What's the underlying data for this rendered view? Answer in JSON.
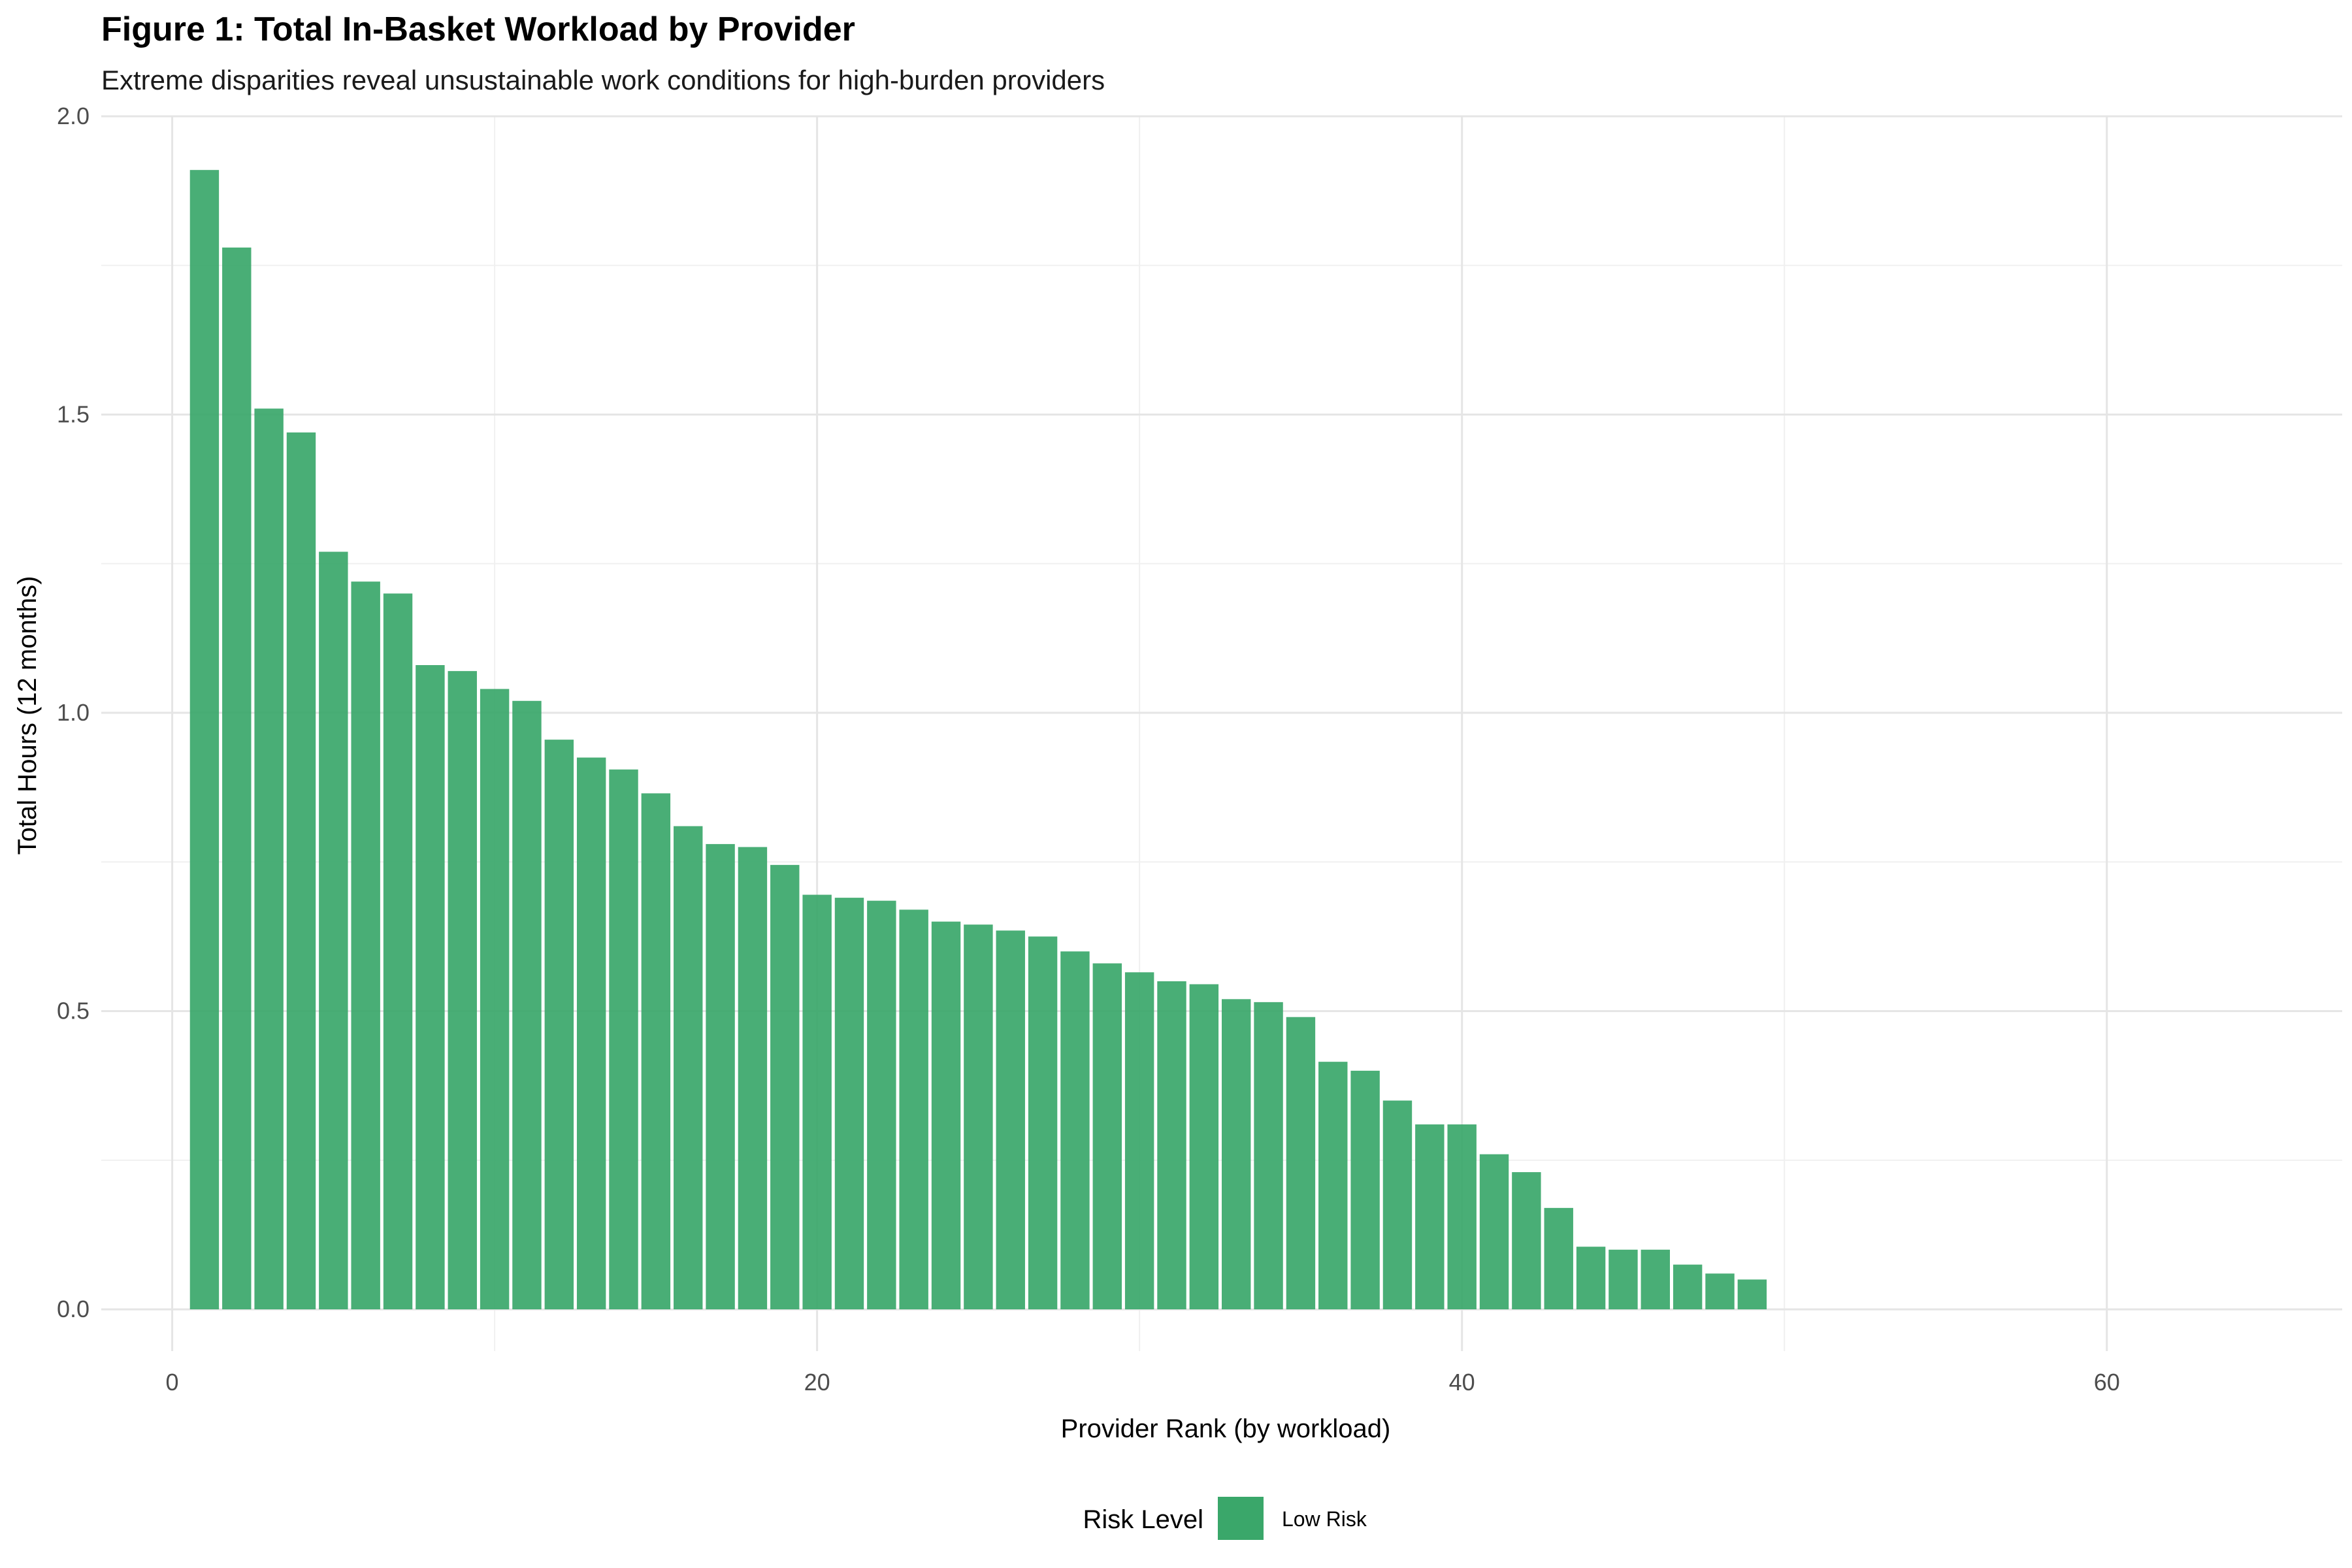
{
  "chart_data": {
    "type": "bar",
    "title": "Figure 1: Total In-Basket Workload by Provider",
    "subtitle": "Extreme disparities reveal unsustainable work conditions for high-burden providers",
    "xlabel": "Provider Rank (by workload)",
    "ylabel": "Total Hours (12 months)",
    "xlim": [
      -2.2,
      67.3
    ],
    "ylim": [
      -0.07,
      2.0
    ],
    "x_ticks": [
      0,
      20,
      40,
      60
    ],
    "x_tick_labels": [
      "0",
      "20",
      "40",
      "60"
    ],
    "y_ticks": [
      0.0,
      0.5,
      1.0,
      1.5,
      2.0
    ],
    "y_tick_labels": [
      "0.0",
      "0.5",
      "1.0",
      "1.5",
      "2.0"
    ],
    "grid": true,
    "legend": {
      "title": "Risk Level",
      "position": "bottom",
      "entries": [
        {
          "label": "Low Risk",
          "color": "#3aa76a"
        }
      ]
    },
    "series": [
      {
        "name": "Low Risk",
        "color": "#3aa76a",
        "x": [
          1,
          2,
          3,
          4,
          5,
          6,
          7,
          8,
          9,
          10,
          11,
          12,
          13,
          14,
          15,
          16,
          17,
          18,
          19,
          20,
          21,
          22,
          23,
          24,
          25,
          26,
          27,
          28,
          29,
          30,
          31,
          32,
          33,
          34,
          35,
          36,
          37,
          38,
          39,
          40,
          41,
          42,
          43,
          44,
          45,
          46,
          47,
          48,
          49
        ],
        "values": [
          1.91,
          1.78,
          1.51,
          1.47,
          1.27,
          1.22,
          1.2,
          1.08,
          1.07,
          1.04,
          1.02,
          0.955,
          0.925,
          0.905,
          0.865,
          0.81,
          0.78,
          0.775,
          0.745,
          0.695,
          0.69,
          0.685,
          0.67,
          0.65,
          0.645,
          0.635,
          0.625,
          0.6,
          0.58,
          0.565,
          0.55,
          0.545,
          0.52,
          0.515,
          0.49,
          0.415,
          0.4,
          0.35,
          0.31,
          0.31,
          0.26,
          0.23,
          0.17,
          0.105,
          0.1,
          0.1,
          0.075,
          0.06,
          0.05
        ]
      }
    ]
  }
}
